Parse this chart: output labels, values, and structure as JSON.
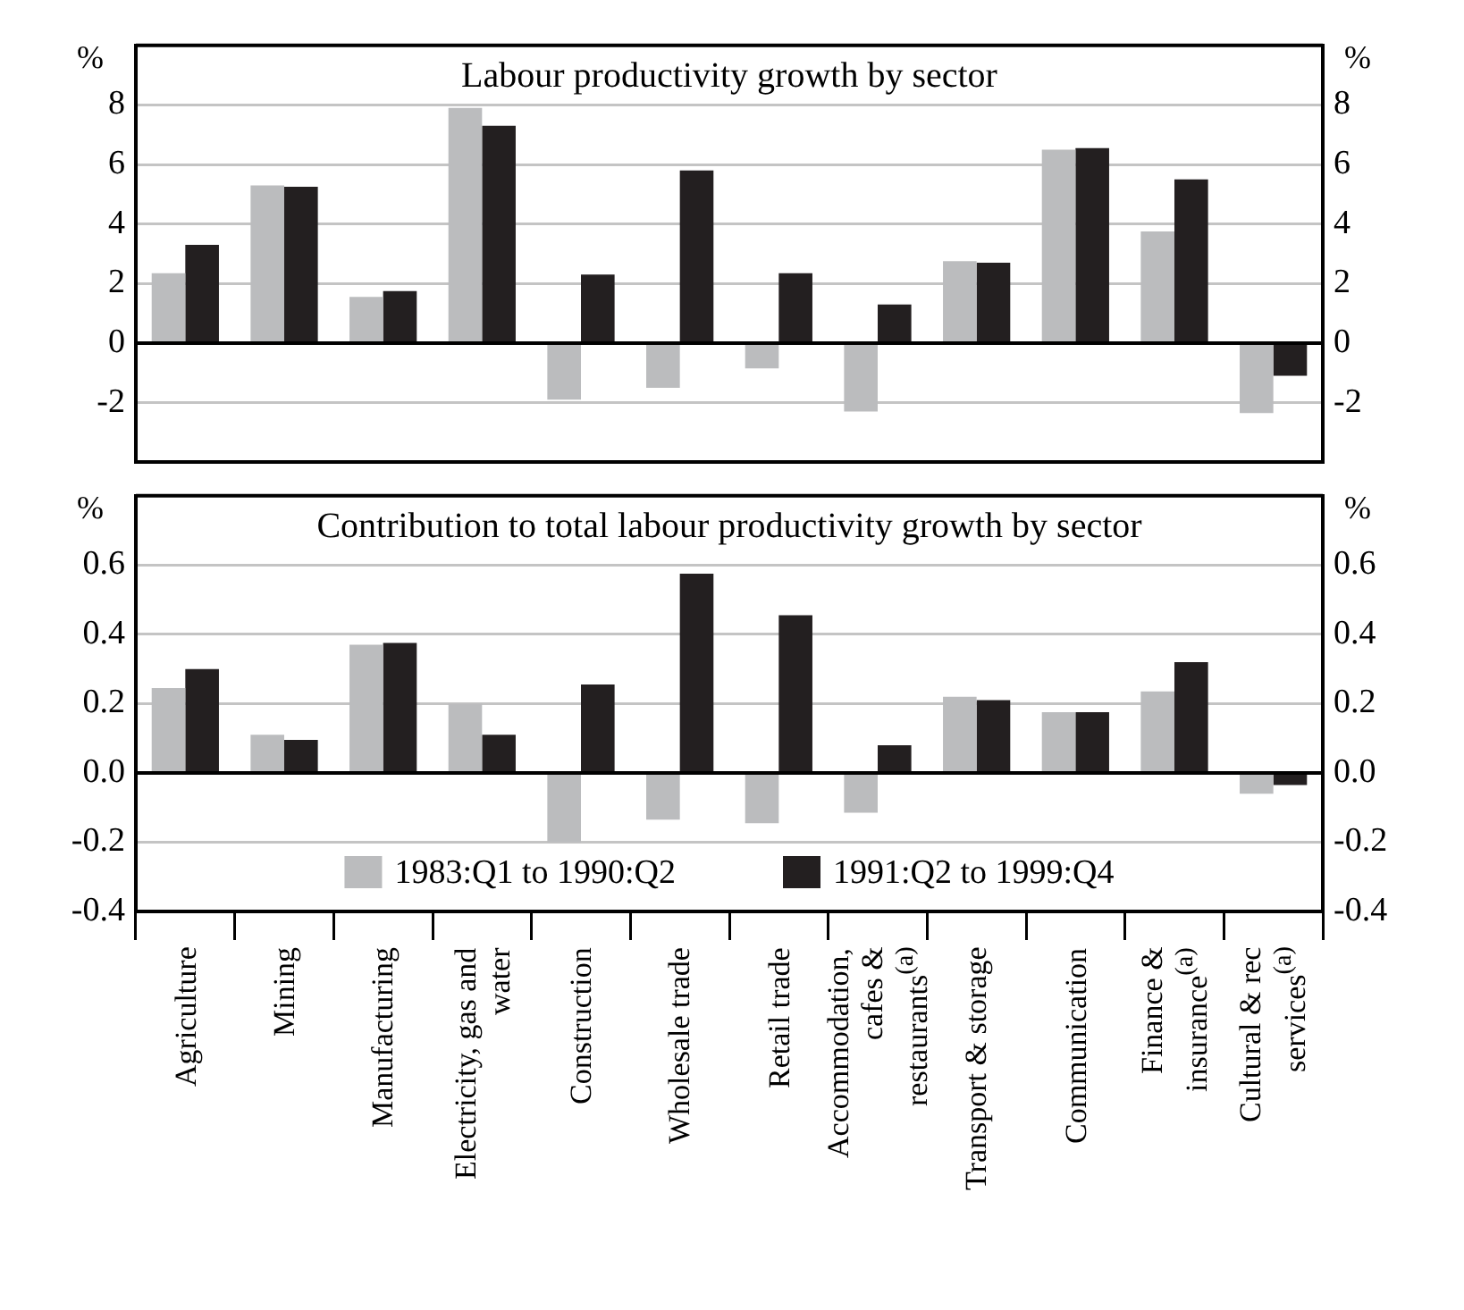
{
  "chart_data": [
    {
      "type": "bar",
      "title": "Labour productivity growth by sector",
      "ylabel": "%",
      "y2label": "%",
      "categories": [
        null,
        null,
        null,
        null,
        null,
        null,
        null,
        null,
        null,
        null,
        null,
        null
      ],
      "series": [
        {
          "color": "#bbbcbe",
          "values": [
            2.35,
            5.3,
            1.55,
            7.9,
            -1.9,
            -1.5,
            -0.85,
            -2.3,
            2.75,
            6.5,
            3.75,
            -2.35
          ]
        },
        {
          "color": "#231f20",
          "values": [
            3.3,
            5.25,
            1.75,
            7.3,
            2.3,
            5.8,
            2.35,
            1.3,
            2.7,
            6.55,
            5.5,
            -1.1
          ]
        }
      ],
      "ylim": [
        -4,
        10
      ],
      "yticks": [
        {
          "value": -4,
          "label": null
        },
        -2,
        0,
        2,
        4,
        6,
        8,
        {
          "value": 10,
          "label": null
        }
      ],
      "y2lim": [
        -4,
        10
      ],
      "y2ticks": [
        {
          "value": -4,
          "label": null
        },
        -2,
        0,
        2,
        4,
        6,
        8,
        {
          "value": 10,
          "label": null
        }
      ],
      "grid": "y",
      "tick_labels": "y",
      "legend": false
    },
    {
      "type": "bar",
      "title": "Contribution to total labour productivity growth by sector",
      "ylabel": "%",
      "y2label": "%",
      "categories": [
        "Agriculture",
        "Mining",
        "Manufacturing",
        "Electricity, gas and water",
        "Construction",
        "Wholesale trade",
        "Retail trade",
        "Accommodation, cafes & restaurants$^{(a)}$",
        "Transport & storage",
        "Communication",
        "Finance & insurance$^{(a)}$",
        "Cultural & rec services$^{(a)}$"
      ],
      "series": [
        {
          "name": "1983:Q1 to 1990:Q2",
          "color": "#bbbcbe",
          "values": [
            0.245,
            0.11,
            0.37,
            0.2,
            -0.2,
            -0.135,
            -0.145,
            -0.115,
            0.22,
            0.175,
            0.235,
            -0.06
          ]
        },
        {
          "name": "1991:Q2 to 1999:Q4",
          "color": "#231f20",
          "values": [
            0.3,
            0.095,
            0.375,
            0.11,
            0.255,
            0.575,
            0.455,
            0.08,
            0.21,
            0.175,
            0.32,
            -0.035
          ]
        }
      ],
      "ylim": [
        -0.4,
        0.8
      ],
      "yticks": [
        {
          "value": -0.4,
          "label": "-0.4"
        },
        {
          "value": -0.2,
          "label": "-0.2"
        },
        {
          "value": 0,
          "label": "0.0"
        },
        {
          "value": 0.2,
          "label": "0.2"
        },
        {
          "value": 0.4,
          "label": "0.4"
        },
        {
          "value": 0.6,
          "label": "0.6"
        },
        {
          "value": 0.8,
          "label": null
        }
      ],
      "y2lim": [
        -0.4,
        0.8
      ],
      "y2ticks": [
        {
          "value": -0.4,
          "label": "-0.4"
        },
        {
          "value": -0.2,
          "label": "-0.2"
        },
        {
          "value": 0,
          "label": "0.0"
        },
        {
          "value": 0.2,
          "label": "0.2"
        },
        {
          "value": 0.4,
          "label": "0.4"
        },
        {
          "value": 0.6,
          "label": "0.6"
        },
        {
          "value": 0.8,
          "label": null
        }
      ],
      "grid": "y",
      "legend": "bottom"
    }
  ]
}
